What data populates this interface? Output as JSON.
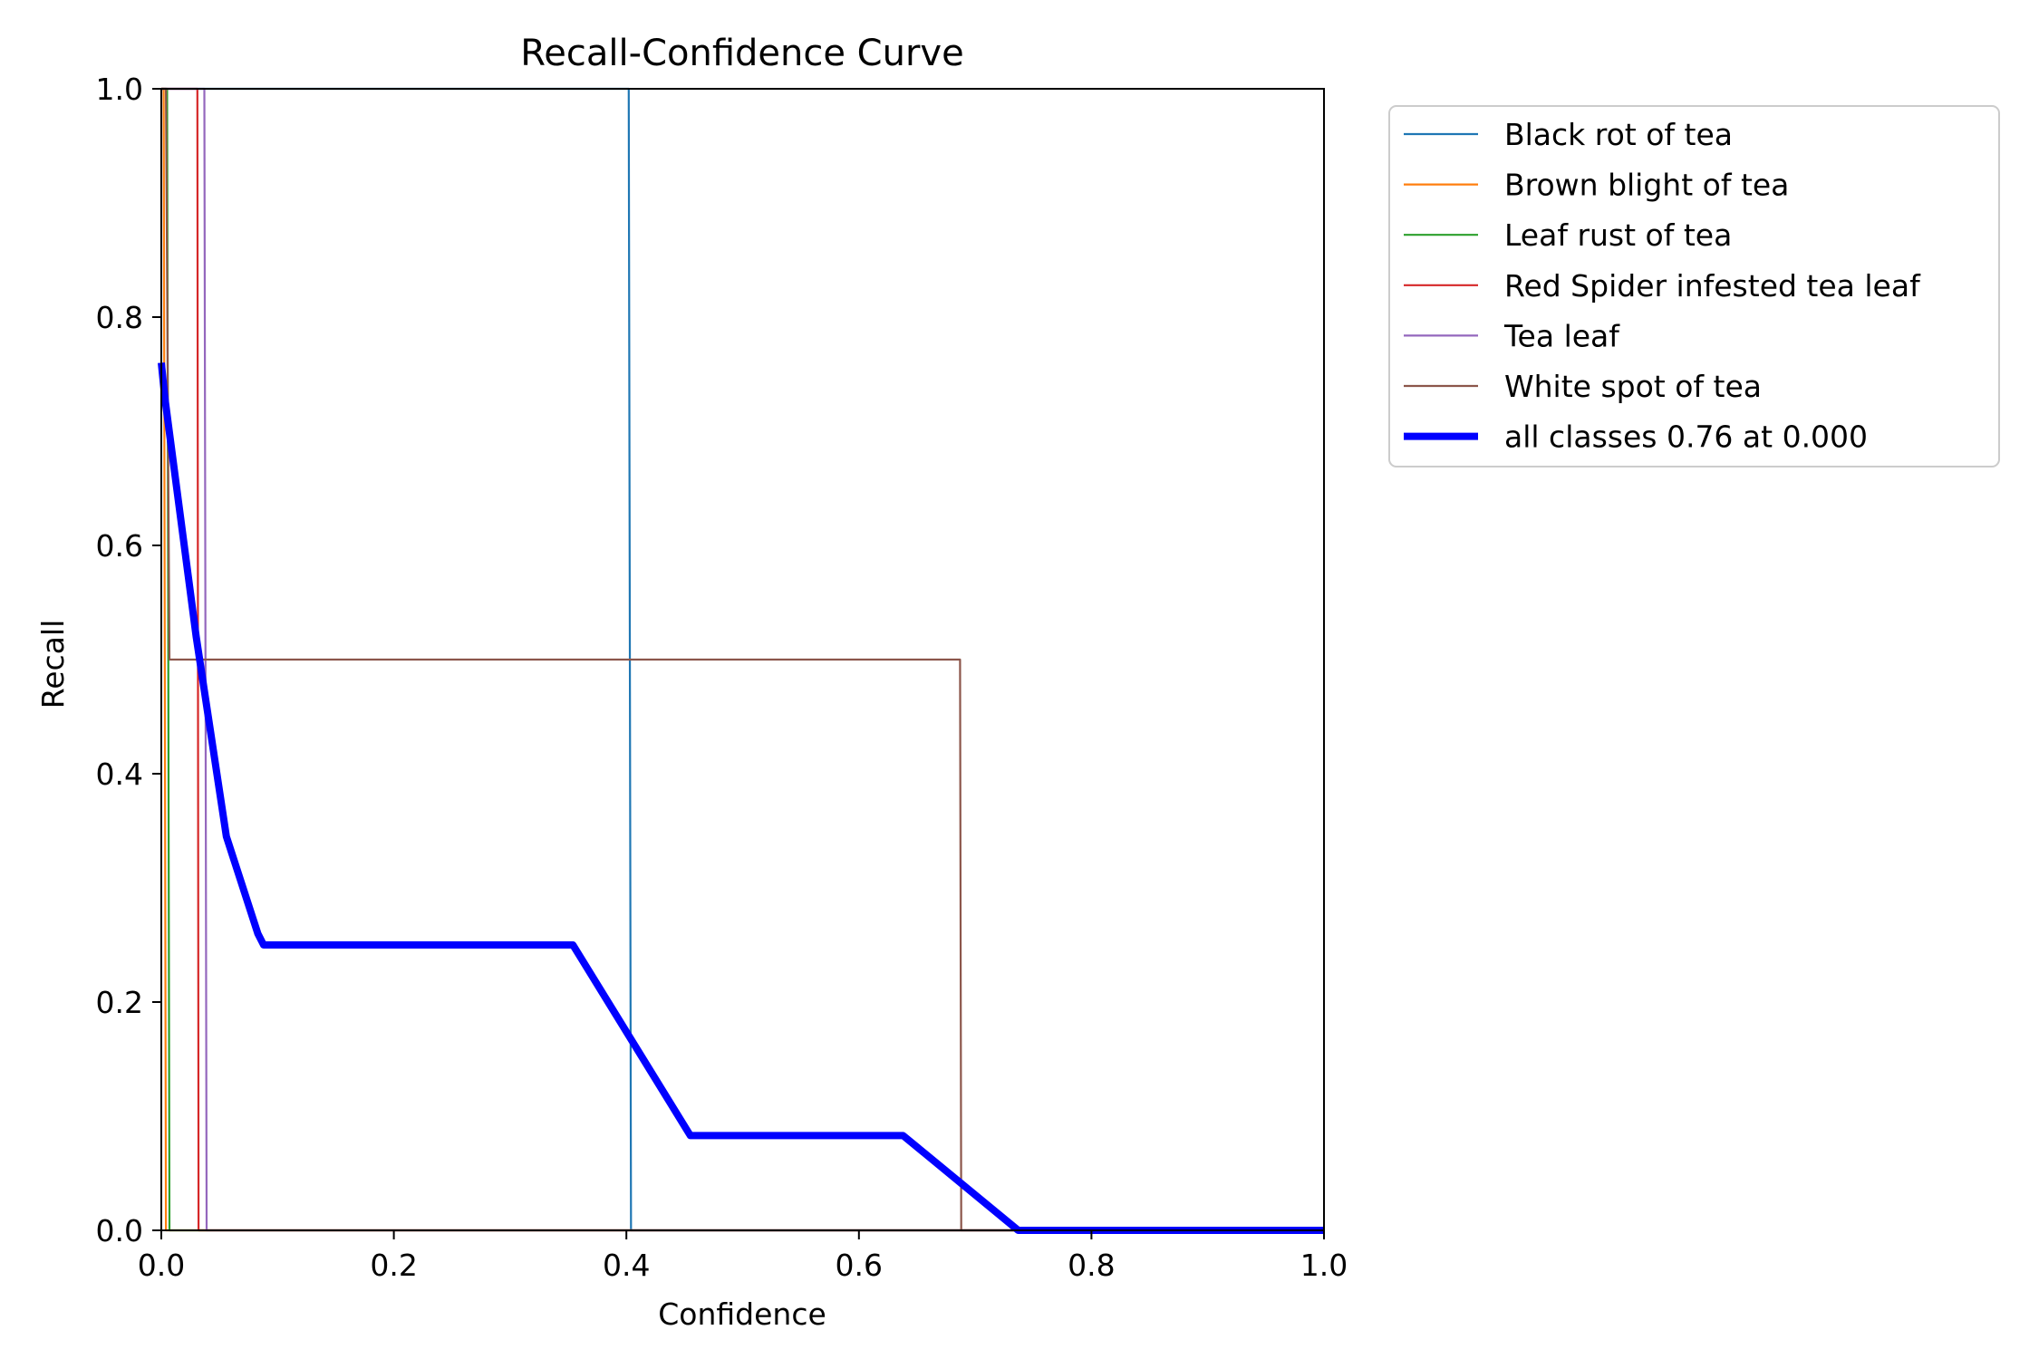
{
  "chart_data": {
    "type": "line",
    "title": "Recall-Confidence Curve",
    "xlabel": "Confidence",
    "ylabel": "Recall",
    "xlim": [
      0.0,
      1.0
    ],
    "ylim": [
      0.0,
      1.0
    ],
    "xticks": [
      "0.0",
      "0.2",
      "0.4",
      "0.6",
      "0.8",
      "1.0"
    ],
    "yticks": [
      "0.0",
      "0.2",
      "0.4",
      "0.6",
      "0.8",
      "1.0"
    ],
    "grid": false,
    "legend_position": "outside-top-right",
    "series": [
      {
        "name": "Black rot of tea",
        "color": "#1f77b4",
        "points": [
          [
            0.0,
            1.0
          ],
          [
            0.402,
            1.0
          ],
          [
            0.404,
            0.0
          ],
          [
            1.0,
            0.0
          ]
        ]
      },
      {
        "name": "Brown blight of tea",
        "color": "#ff7f0e",
        "points": [
          [
            0.0,
            1.0
          ],
          [
            0.002,
            1.0
          ],
          [
            0.004,
            0.0
          ],
          [
            1.0,
            0.0
          ]
        ]
      },
      {
        "name": "Leaf rust of tea",
        "color": "#2ca02c",
        "points": [
          [
            0.0,
            1.0
          ],
          [
            0.005,
            1.0
          ],
          [
            0.007,
            0.0
          ],
          [
            1.0,
            0.0
          ]
        ]
      },
      {
        "name": "Red Spider infested tea leaf",
        "color": "#d62728",
        "points": [
          [
            0.0,
            1.0
          ],
          [
            0.031,
            1.0
          ],
          [
            0.032,
            0.0
          ],
          [
            1.0,
            0.0
          ]
        ]
      },
      {
        "name": "Tea leaf",
        "color": "#9467bd",
        "points": [
          [
            0.0,
            1.0
          ],
          [
            0.037,
            1.0
          ],
          [
            0.039,
            0.0
          ],
          [
            1.0,
            0.0
          ]
        ]
      },
      {
        "name": "White spot of tea",
        "color": "#8c564b",
        "points": [
          [
            0.0,
            1.0
          ],
          [
            0.004,
            1.0
          ],
          [
            0.007,
            0.5
          ],
          [
            0.687,
            0.5
          ],
          [
            0.688,
            0.0
          ],
          [
            1.0,
            0.0
          ]
        ]
      },
      {
        "name": "all classes 0.76 at 0.000",
        "color": "#0000ff",
        "bold": true,
        "points": [
          [
            0.0,
            0.76
          ],
          [
            0.003,
            0.73
          ],
          [
            0.03,
            0.52
          ],
          [
            0.056,
            0.345
          ],
          [
            0.083,
            0.26
          ],
          [
            0.088,
            0.25
          ],
          [
            0.354,
            0.25
          ],
          [
            0.455,
            0.083
          ],
          [
            0.638,
            0.083
          ],
          [
            0.737,
            0.0
          ],
          [
            1.0,
            0.0
          ]
        ]
      }
    ]
  }
}
